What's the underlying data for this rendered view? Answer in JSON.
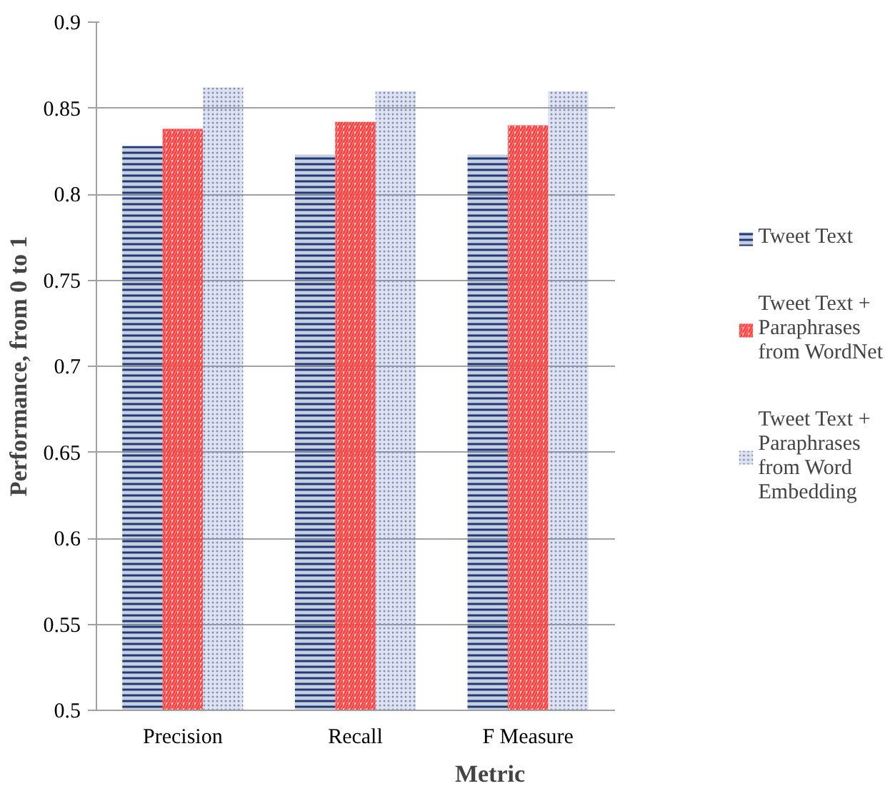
{
  "chart_data": {
    "type": "bar",
    "xlabel": "Metric",
    "ylabel": "Performance, from 0 to 1",
    "categories": [
      "Precision",
      "Recall",
      "F Measure"
    ],
    "series": [
      {
        "name": "Tweet Text",
        "color": "#1f3a7a",
        "values": [
          0.828,
          0.823,
          0.823
        ]
      },
      {
        "name": "Tweet Text + Paraphrases from WordNet",
        "color": "#ff4040",
        "values": [
          0.838,
          0.842,
          0.84
        ]
      },
      {
        "name": "Tweet Text + Paraphrases from Word Embedding",
        "color": "#8090c0",
        "values": [
          0.862,
          0.86,
          0.86
        ]
      }
    ],
    "ylim": [
      0.5,
      0.9
    ],
    "yticks": [
      0.5,
      0.55,
      0.6,
      0.65,
      0.7,
      0.75,
      0.8,
      0.85,
      0.9
    ],
    "grid": "y",
    "legend": "right"
  }
}
